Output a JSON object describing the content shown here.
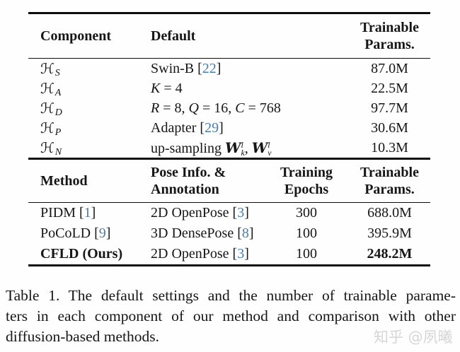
{
  "colors": {
    "ref_blue": "#4a7dab",
    "text": "#161616",
    "rule": "#0c0c0c",
    "watermark_gray": "#d6d6d6"
  },
  "table1": {
    "header": {
      "component": "Component",
      "default": "Default",
      "trainable_line1": "Trainable",
      "trainable_line2": "Params."
    },
    "rows": [
      {
        "sym": "ℋ",
        "sub": "S",
        "default": [
          {
            "text": "Swin-B ["
          },
          {
            "ref": "22"
          },
          {
            "text": "]"
          }
        ],
        "params": "87.0M"
      },
      {
        "sym": "ℋ",
        "sub": "A",
        "default": [
          {
            "var": "K"
          },
          {
            "text": " = 4"
          }
        ],
        "params": "22.5M"
      },
      {
        "sym": "ℋ",
        "sub": "D",
        "default": [
          {
            "var": "R"
          },
          {
            "text": " = 8, "
          },
          {
            "var": "Q"
          },
          {
            "text": " = 16, "
          },
          {
            "var": "C"
          },
          {
            "text": " = 768"
          }
        ],
        "params": "97.7M"
      },
      {
        "sym": "ℋ",
        "sub": "P",
        "default": [
          {
            "text": "Adapter ["
          },
          {
            "ref": "29"
          },
          {
            "text": "]"
          }
        ],
        "params": "30.6M"
      },
      {
        "sym": "ℋ",
        "sub": "N",
        "default": [
          {
            "text": "up-sampling "
          },
          {
            "bvar": "W",
            "vsub": "k",
            "vsup": "l"
          },
          {
            "text": ", "
          },
          {
            "bvar": "W",
            "vsub": "v",
            "vsup": "l"
          }
        ],
        "params": "10.3M"
      }
    ]
  },
  "table2": {
    "header": {
      "method": "Method",
      "pose_line1": "Pose Info. &",
      "pose_line2": "Annotation",
      "epochs_line1": "Training",
      "epochs_line2": "Epochs",
      "trainable_line1": "Trainable",
      "trainable_line2": "Params."
    },
    "rows": [
      {
        "method": [
          {
            "text": "PIDM ["
          },
          {
            "ref": "1"
          },
          {
            "text": "]"
          }
        ],
        "pose": [
          {
            "text": "2D OpenPose ["
          },
          {
            "ref": "3"
          },
          {
            "text": "]"
          }
        ],
        "epochs": "300",
        "params": "688.0M"
      },
      {
        "method": [
          {
            "text": "PoCoLD ["
          },
          {
            "ref": "9"
          },
          {
            "text": "]"
          }
        ],
        "pose": [
          {
            "text": "3D DensePose ["
          },
          {
            "ref": "8"
          },
          {
            "text": "]"
          }
        ],
        "epochs": "100",
        "params": "395.9M"
      },
      {
        "method": [
          {
            "text": "CFLD (Ours)"
          }
        ],
        "pose": [
          {
            "text": "2D OpenPose ["
          },
          {
            "ref": "3"
          },
          {
            "text": "]"
          }
        ],
        "epochs": "100",
        "params": "248.2M"
      }
    ]
  },
  "caption": {
    "line1": "Table 1. The default settings and the number of trainable parame-",
    "line2": "ters in each component of our method and comparison with other",
    "line3": "diffusion-based methods."
  },
  "watermark": "知乎 @夙曦"
}
